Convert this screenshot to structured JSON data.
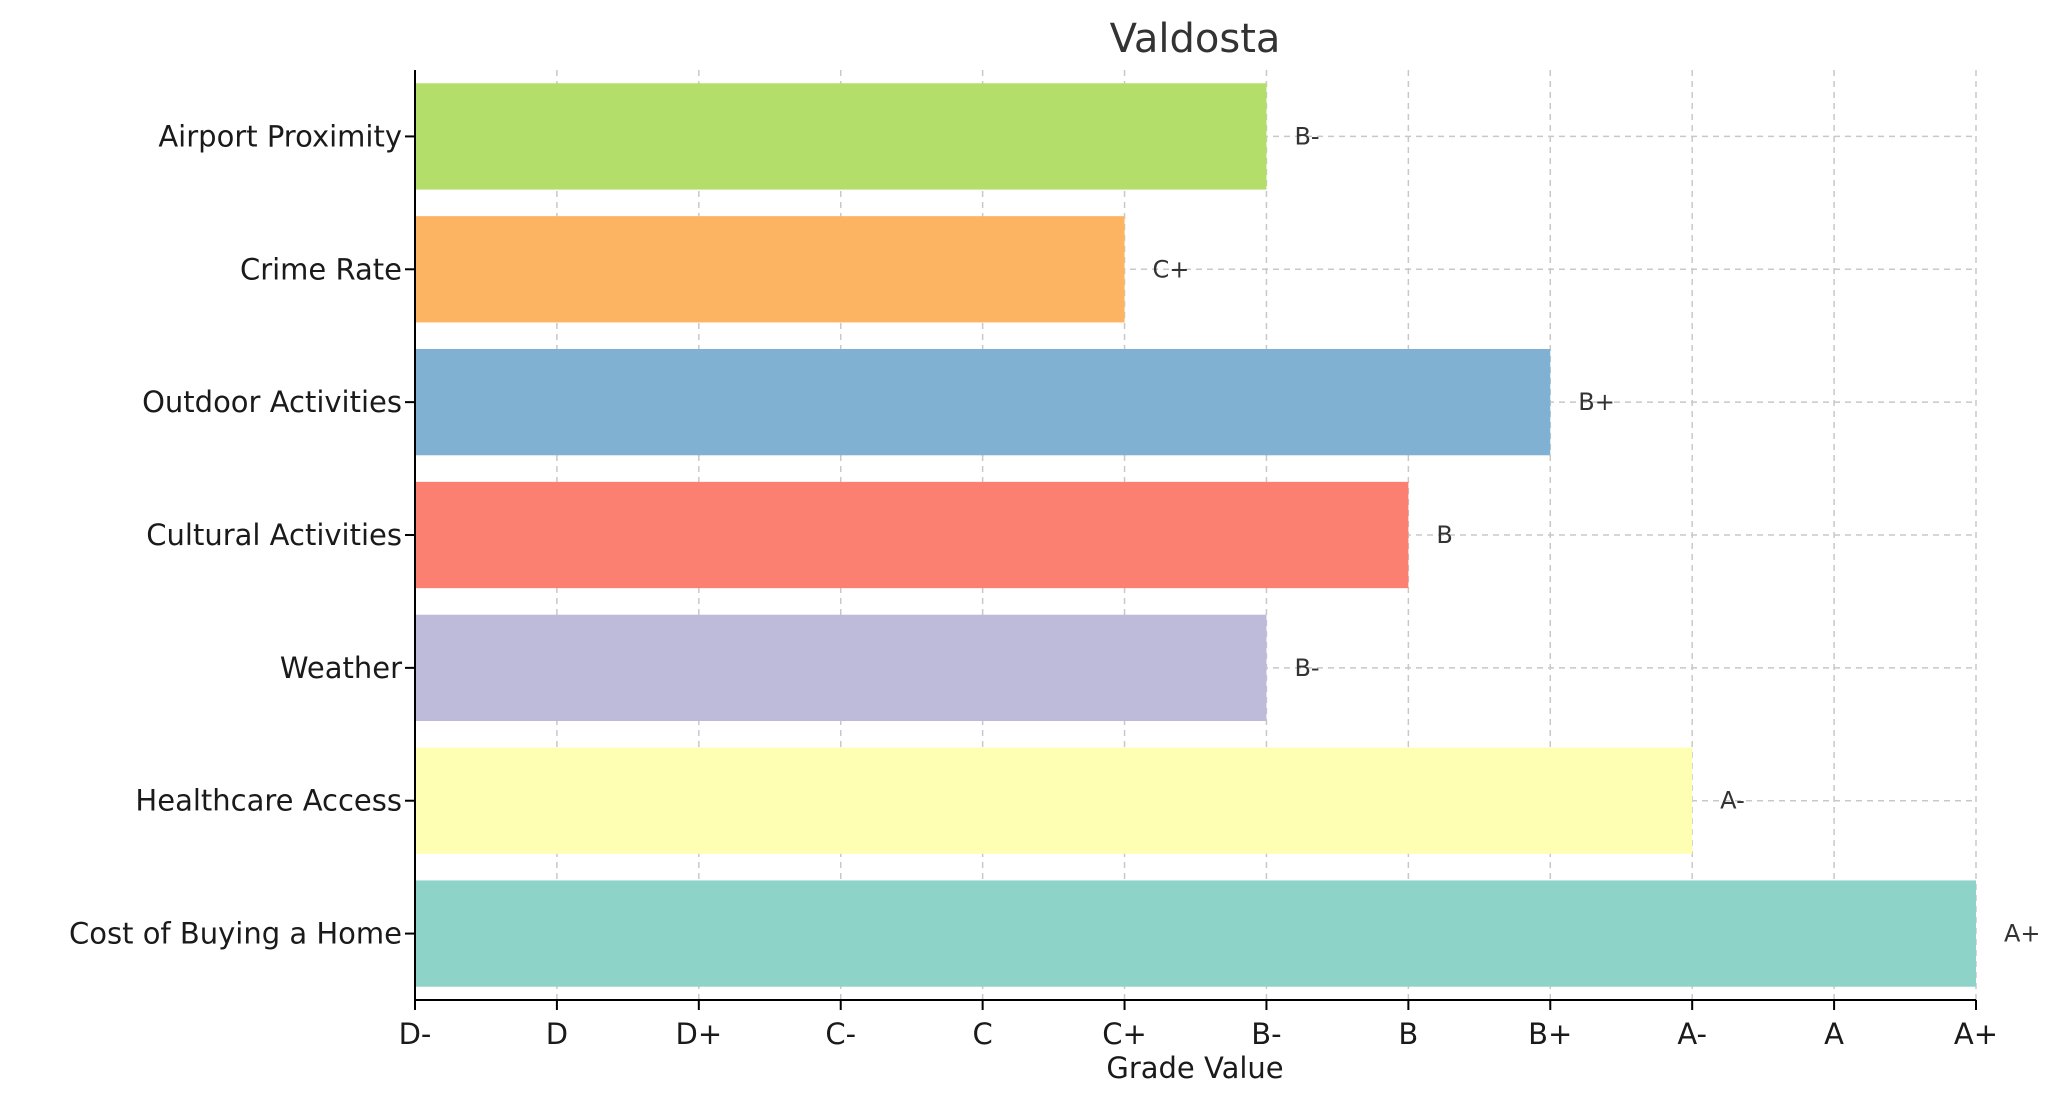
{
  "chart_data": {
    "type": "bar",
    "orientation": "horizontal",
    "title": "Valdosta",
    "xlabel": "Grade Value",
    "ylabel": "",
    "x_ticks": [
      "D-",
      "D",
      "D+",
      "C-",
      "C",
      "C+",
      "B-",
      "B",
      "B+",
      "A-",
      "A",
      "A+"
    ],
    "xlim": [
      0,
      11
    ],
    "grid": true,
    "categories": [
      "Airport Proximity",
      "Crime Rate",
      "Outdoor Activities",
      "Cultural Activities",
      "Weather",
      "Healthcare Access",
      "Cost of Buying a Home"
    ],
    "values": [
      6,
      5,
      8,
      7,
      6,
      9,
      11
    ],
    "value_labels": [
      "B-",
      "C+",
      "B+",
      "B",
      "B-",
      "A-",
      "A+"
    ],
    "colors": [
      "#b3de69",
      "#fdb462",
      "#80b1d3",
      "#fb8072",
      "#bebada",
      "#ffffb3",
      "#8dd3c7"
    ]
  }
}
